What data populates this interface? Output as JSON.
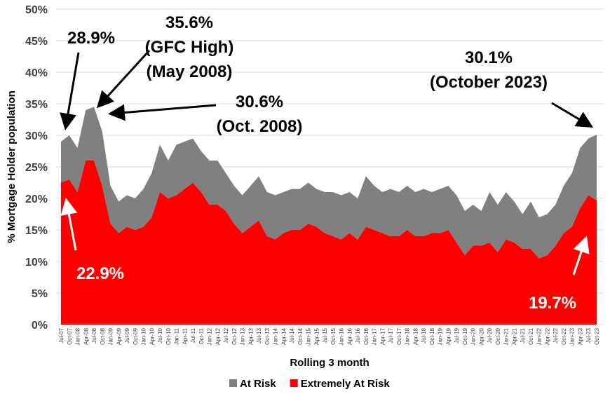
{
  "chart_data": {
    "type": "stacked-area",
    "x_label": "Rolling 3 month",
    "y_label": "% Mortgage Holder population",
    "categories": [
      "Jul-07",
      "Oct-07",
      "Jan-08",
      "Apr-08",
      "Jul-08",
      "Oct-08",
      "Jan-09",
      "Apr-09",
      "Jul-09",
      "Oct-09",
      "Jan-10",
      "Apr-10",
      "Jul-10",
      "Oct-10",
      "Jan-11",
      "Apr-11",
      "Jul-11",
      "Oct-11",
      "Jan-12",
      "Apr-12",
      "Jul-12",
      "Oct-12",
      "Jan-13",
      "Apr-13",
      "Jul-13",
      "Oct-13",
      "Jan-14",
      "Apr-14",
      "Jul-14",
      "Oct-14",
      "Jan-15",
      "Apr-15",
      "Jul-15",
      "Oct-15",
      "Jan-16",
      "Apr-16",
      "Jul-16",
      "Oct-16",
      "Jan-17",
      "Apr-17",
      "Jul-17",
      "Oct-17",
      "Jan-18",
      "Apr-18",
      "Jul-18",
      "Oct-18",
      "Jan-19",
      "Apr-19",
      "Jul-19",
      "Oct-19",
      "Jan-20",
      "Apr-20",
      "Jul-20",
      "Oct-20",
      "Jan-21",
      "Apr-21",
      "Jul-21",
      "Oct-21",
      "Jan-22",
      "Apr-22",
      "Jul-22",
      "Oct-22",
      "Jan-23",
      "Apr-23",
      "Jul-23",
      "Oct-23"
    ],
    "series": [
      {
        "name": "At Risk",
        "color": "#808080",
        "values": [
          6.5,
          7,
          7,
          8,
          8.5,
          8.6,
          6,
          5,
          5,
          5,
          6,
          7,
          7.5,
          6,
          8,
          7.5,
          7,
          6.5,
          7,
          7,
          6,
          6,
          6,
          6.5,
          7,
          7,
          7,
          6.5,
          6.5,
          6.5,
          6.5,
          6,
          6.5,
          7,
          7,
          6.5,
          6.5,
          8,
          7,
          6.5,
          7.5,
          7,
          7,
          7,
          7.5,
          6.5,
          7,
          7,
          7.5,
          7,
          6.5,
          5.5,
          8,
          7.5,
          7.5,
          6.5,
          5.5,
          7.5,
          6.5,
          6.5,
          6.5,
          7.5,
          8.5,
          9.5,
          9,
          10.4
        ]
      },
      {
        "name": "Extremely At Risk",
        "color": "#ff0000",
        "values": [
          22.5,
          23,
          21,
          26,
          26,
          22,
          16,
          14.5,
          15.5,
          15,
          15.5,
          17,
          21,
          20,
          20.5,
          21.5,
          22.5,
          21,
          19,
          19,
          18,
          16,
          14.5,
          15.5,
          16.5,
          14,
          13.5,
          14.5,
          15,
          15,
          16,
          15.5,
          14.5,
          14,
          13.5,
          14.5,
          13.5,
          15.5,
          15,
          14.5,
          14,
          14,
          15,
          14,
          14,
          14.5,
          14.5,
          15,
          13,
          11,
          12.5,
          12.5,
          13,
          11.5,
          13.5,
          13,
          12,
          12,
          10.5,
          11,
          12.5,
          14.5,
          15.5,
          18.5,
          20.5,
          19.7
        ]
      }
    ],
    "ylim": [
      0,
      50
    ],
    "yticks": [
      {
        "value": 0,
        "label": "0%"
      },
      {
        "value": 5,
        "label": "5%"
      },
      {
        "value": 10,
        "label": "10%"
      },
      {
        "value": 15,
        "label": "15%"
      },
      {
        "value": 20,
        "label": "20%"
      },
      {
        "value": 25,
        "label": "25%"
      },
      {
        "value": 30,
        "label": "30%"
      },
      {
        "value": 35,
        "label": "35%"
      },
      {
        "value": 40,
        "label": "40%"
      },
      {
        "value": 45,
        "label": "45%"
      },
      {
        "value": 50,
        "label": "50%"
      }
    ],
    "grid": true,
    "legend": "bottom",
    "annotations": [
      [
        "28.9%"
      ],
      [
        "35.6%",
        "(GFC High)",
        "(May 2008)"
      ],
      [
        "30.6%",
        "(Oct. 2008)"
      ],
      [
        "30.1%",
        "(October 2023)"
      ],
      [
        "22.9%"
      ],
      [
        "19.7%"
      ]
    ]
  }
}
